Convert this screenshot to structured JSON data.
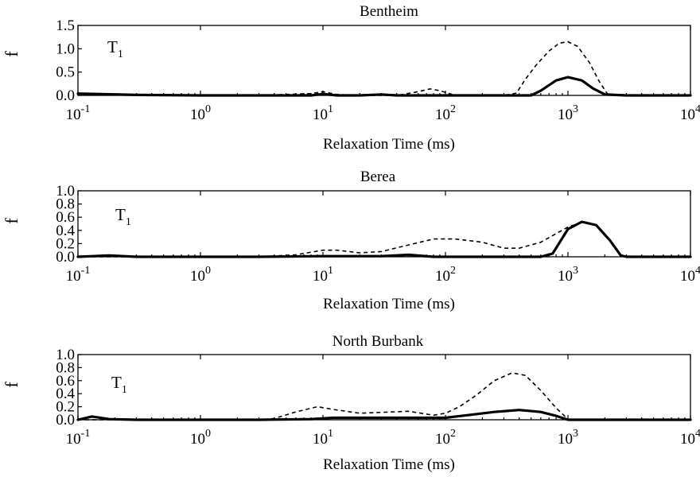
{
  "chart_data": [
    {
      "type": "line",
      "title": "Bentheim",
      "annotation": {
        "main": "T",
        "sub": "1"
      },
      "xlabel": "Relaxation Time (ms)",
      "ylabel": "f",
      "xscale": "log",
      "xlim": [
        0.1,
        10000
      ],
      "ylim": [
        0,
        1.5
      ],
      "yticks": [
        "0.0",
        "0.5",
        "1.0",
        "1.5"
      ],
      "yticks_values": [
        0,
        0.5,
        1.0,
        1.5
      ],
      "xticks": [
        {
          "base": "10",
          "exp": "-1"
        },
        {
          "base": "10",
          "exp": "0"
        },
        {
          "base": "10",
          "exp": "1"
        },
        {
          "base": "10",
          "exp": "2"
        },
        {
          "base": "10",
          "exp": "3"
        },
        {
          "base": "10",
          "exp": "4"
        }
      ],
      "xticks_values": [
        0.1,
        1,
        10,
        100,
        1000,
        10000
      ],
      "series": [
        {
          "style": "solid",
          "x": [
            0.1,
            0.3,
            1,
            3,
            8,
            10,
            13,
            20,
            30,
            40,
            60,
            100,
            200,
            300,
            400,
            500,
            600,
            800,
            1000,
            1300,
            1600,
            2000,
            3000,
            10000
          ],
          "y": [
            0.04,
            0.01,
            0.0,
            0.0,
            0.0,
            0.03,
            0.0,
            0.0,
            0.02,
            0.0,
            0.0,
            0.0,
            0.0,
            0.0,
            0.0,
            0.0,
            0.1,
            0.32,
            0.39,
            0.32,
            0.15,
            0.02,
            0.0,
            0.0
          ]
        },
        {
          "style": "dashed",
          "x": [
            0.1,
            0.3,
            1,
            3,
            8,
            10,
            13,
            20,
            40,
            60,
            75,
            90,
            120,
            200,
            300,
            380,
            450,
            550,
            700,
            850,
            1000,
            1200,
            1500,
            1800,
            2100,
            3000,
            10000
          ],
          "y": [
            0.03,
            0.01,
            0.0,
            0.0,
            0.04,
            0.08,
            0.02,
            0.0,
            0.0,
            0.08,
            0.14,
            0.1,
            0.0,
            0.0,
            0.0,
            0.05,
            0.35,
            0.65,
            0.95,
            1.12,
            1.15,
            1.05,
            0.7,
            0.3,
            0.03,
            0.0,
            0.0
          ]
        }
      ]
    },
    {
      "type": "line",
      "title": "Berea",
      "annotation": {
        "main": "T",
        "sub": "1"
      },
      "xlabel": "Relaxation Time (ms)",
      "ylabel": "f",
      "xscale": "log",
      "xlim": [
        0.1,
        10000
      ],
      "ylim": [
        0,
        1.0
      ],
      "yticks": [
        "0.0",
        "0.2",
        "0.4",
        "0.6",
        "0.8",
        "1.0"
      ],
      "yticks_values": [
        0,
        0.2,
        0.4,
        0.6,
        0.8,
        1.0
      ],
      "xticks": [
        {
          "base": "10",
          "exp": "-1"
        },
        {
          "base": "10",
          "exp": "0"
        },
        {
          "base": "10",
          "exp": "1"
        },
        {
          "base": "10",
          "exp": "2"
        },
        {
          "base": "10",
          "exp": "3"
        },
        {
          "base": "10",
          "exp": "4"
        }
      ],
      "xticks_values": [
        0.1,
        1,
        10,
        100,
        1000,
        10000
      ],
      "series": [
        {
          "style": "solid",
          "x": [
            0.1,
            0.18,
            0.3,
            1,
            3,
            10,
            30,
            50,
            80,
            150,
            300,
            600,
            750,
            1000,
            1300,
            1700,
            2200,
            2700,
            3000,
            10000
          ],
          "y": [
            0.0,
            0.02,
            0.0,
            0.0,
            0.0,
            0.01,
            0.01,
            0.03,
            0.0,
            0.0,
            0.0,
            0.0,
            0.05,
            0.42,
            0.53,
            0.48,
            0.25,
            0.02,
            0.0,
            0.0
          ]
        },
        {
          "style": "dashed",
          "x": [
            0.1,
            0.3,
            1,
            3,
            6,
            10,
            13,
            20,
            30,
            50,
            80,
            120,
            200,
            300,
            400,
            600,
            800,
            1000,
            1300,
            1700,
            2200,
            2700,
            3000,
            10000
          ],
          "y": [
            0.0,
            0.0,
            0.0,
            0.0,
            0.03,
            0.1,
            0.1,
            0.06,
            0.08,
            0.18,
            0.27,
            0.27,
            0.22,
            0.13,
            0.13,
            0.22,
            0.35,
            0.45,
            0.52,
            0.48,
            0.25,
            0.02,
            0.0,
            0.0
          ]
        }
      ]
    },
    {
      "type": "line",
      "title": "North Burbank",
      "annotation": {
        "main": "T",
        "sub": "1"
      },
      "xlabel": "Relaxation Time (ms)",
      "ylabel": "f",
      "xscale": "log",
      "xlim": [
        0.1,
        10000
      ],
      "ylim": [
        0,
        1.0
      ],
      "yticks": [
        "0.0",
        "0.2",
        "0.4",
        "0.6",
        "0.8",
        "1.0"
      ],
      "yticks_values": [
        0,
        0.2,
        0.4,
        0.6,
        0.8,
        1.0
      ],
      "xticks": [
        {
          "base": "10",
          "exp": "-1"
        },
        {
          "base": "10",
          "exp": "0"
        },
        {
          "base": "10",
          "exp": "1"
        },
        {
          "base": "10",
          "exp": "2"
        },
        {
          "base": "10",
          "exp": "3"
        },
        {
          "base": "10",
          "exp": "4"
        }
      ],
      "xticks_values": [
        0.1,
        1,
        10,
        100,
        1000,
        10000
      ],
      "series": [
        {
          "style": "solid",
          "x": [
            0.1,
            0.13,
            0.18,
            0.3,
            1,
            3,
            8,
            12,
            20,
            50,
            100,
            150,
            250,
            400,
            600,
            800,
            1000,
            1300,
            3000,
            10000
          ],
          "y": [
            0.0,
            0.05,
            0.01,
            0.0,
            0.0,
            0.0,
            0.01,
            0.03,
            0.03,
            0.03,
            0.03,
            0.07,
            0.12,
            0.15,
            0.12,
            0.06,
            0.0,
            0.0,
            0.0,
            0.0
          ]
        },
        {
          "style": "dashed",
          "x": [
            0.1,
            0.3,
            1,
            3,
            4,
            6,
            9,
            12,
            20,
            50,
            80,
            100,
            130,
            180,
            250,
            350,
            450,
            600,
            800,
            1000,
            3000,
            10000
          ],
          "y": [
            0.0,
            0.0,
            0.0,
            0.0,
            0.02,
            0.12,
            0.2,
            0.16,
            0.1,
            0.13,
            0.07,
            0.1,
            0.2,
            0.38,
            0.6,
            0.72,
            0.68,
            0.45,
            0.18,
            0.01,
            0.0,
            0.0
          ]
        }
      ]
    }
  ]
}
